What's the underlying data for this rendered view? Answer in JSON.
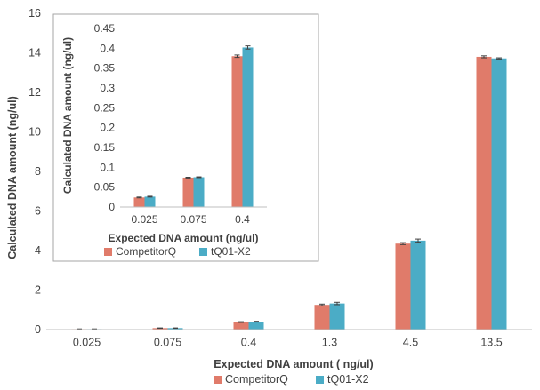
{
  "chart_data": [
    {
      "id": "main",
      "type": "bar",
      "categories": [
        "0.025",
        "0.075",
        "0.4",
        "1.3",
        "4.5",
        "13.5"
      ],
      "series": [
        {
          "name": "CompetitorQ",
          "color": "#e07b6a",
          "values": [
            0.025,
            0.075,
            0.38,
            1.25,
            4.35,
            13.8
          ],
          "errors": [
            0.01,
            0.01,
            0.02,
            0.04,
            0.05,
            0.05
          ]
        },
        {
          "name": "tQ01-X2",
          "color": "#4bacc6",
          "values": [
            0.025,
            0.075,
            0.4,
            1.32,
            4.5,
            13.72
          ],
          "errors": [
            0.01,
            0.01,
            0.02,
            0.06,
            0.08,
            0.03
          ]
        }
      ],
      "xlabel": "Expected DNA amount ( ng/ul)",
      "ylabel": "Calculated DNA amount (ng/ul)",
      "ylim": [
        0,
        16
      ],
      "yticks": [
        "0",
        "2",
        "4",
        "6",
        "8",
        "10",
        "12",
        "14",
        "16"
      ],
      "grid": false,
      "legend_position": "bottom"
    },
    {
      "id": "inset",
      "type": "bar",
      "categories": [
        "0.025",
        "0.075",
        "0.4"
      ],
      "series": [
        {
          "name": "CompetitorQ",
          "color": "#e07b6a",
          "values": [
            0.024,
            0.074,
            0.38
          ],
          "errors": [
            0.001,
            0.001,
            0.003
          ]
        },
        {
          "name": "tQ01-X2",
          "color": "#4bacc6",
          "values": [
            0.026,
            0.075,
            0.402
          ],
          "errors": [
            0.001,
            0.001,
            0.004
          ]
        }
      ],
      "xlabel": "Expected DNA amount  (ng/ul)",
      "ylabel": "Calculated DNA amount  (ng/ul)",
      "ylim": [
        0,
        0.45
      ],
      "yticks": [
        "0",
        "0.05",
        "0.1",
        "0.15",
        "0.2",
        "0.25",
        "0.3",
        "0.35",
        "0.4",
        "0.45"
      ],
      "grid": false,
      "legend_position": "bottom"
    }
  ]
}
